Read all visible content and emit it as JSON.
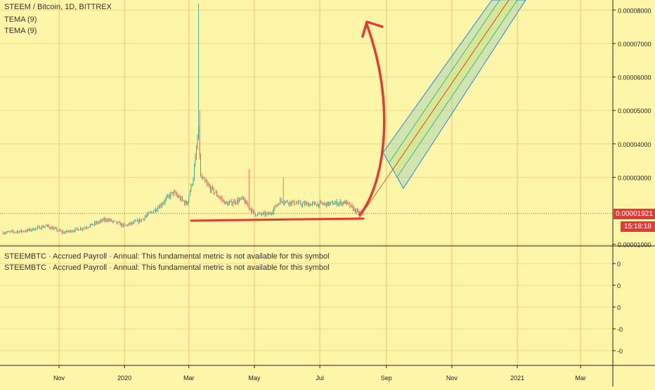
{
  "legend": {
    "symbol_line": "STEEM / Bitcoin, 1D, BITTREX",
    "indicators": [
      "TEMA (9)",
      "TEMA (9)"
    ]
  },
  "metric_panel": {
    "lines": [
      "STEEMBTC · Accrued Payroll · Annual: This fundamental metric is not available for this symbol",
      "STEEMBTC · Accrued Payroll · Annual: This fundamental metric is not available for this symbol"
    ]
  },
  "price_badge": {
    "price": "0.00001921",
    "countdown": "15:18:18"
  },
  "colors": {
    "background": "#fdf5a8",
    "grid": "#f2c36b",
    "candle_up": "#26a69a",
    "candle_down": "#ef5350",
    "annotation": "#e53935",
    "channel_border": "#1e88e5",
    "channel_fill": "#7ec8b4"
  },
  "chart_data": {
    "type": "candlestick",
    "title": "STEEM / Bitcoin, 1D, BITTREX",
    "x_tick_labels": [
      "Nov",
      "2020",
      "Mar",
      "May",
      "Jul",
      "Sep",
      "Nov",
      "2021",
      "Mar"
    ],
    "y_tick_labels": [
      "0.00008000",
      "0.00007000",
      "0.00006000",
      "0.00005000",
      "0.00004000",
      "0.00003000",
      "0.00001000"
    ],
    "y_ticks": [
      8e-05,
      7e-05,
      6e-05,
      5e-05,
      4e-05,
      3e-05,
      1e-05
    ],
    "ylim": [
      9.5e-06,
      8.3e-05
    ],
    "current_price": 1.921e-05,
    "grid": true,
    "x_date_range": [
      "2019-09-07",
      "2021-03-31"
    ],
    "series": [
      {
        "values": [
          [
            "2019-09-10",
            1.35e-05
          ],
          [
            "2019-10-01",
            1.4e-05
          ],
          [
            "2019-10-20",
            1.55e-05
          ],
          [
            "2019-11-05",
            1.35e-05
          ],
          [
            "2019-11-25",
            1.5e-05
          ],
          [
            "2019-12-15",
            1.75e-05
          ],
          [
            "2020-01-01",
            1.55e-05
          ],
          [
            "2020-01-15",
            1.7e-05
          ],
          [
            "2020-02-01",
            2.1e-05
          ],
          [
            "2020-02-15",
            2.55e-05
          ],
          [
            "2020-02-28",
            2.2e-05
          ],
          [
            "2020-03-05",
            3e-05
          ],
          [
            "2020-03-10",
            4.4e-05
          ],
          [
            "2020-03-12",
            3e-05
          ],
          [
            "2020-03-20",
            2.7e-05
          ],
          [
            "2020-04-05",
            2.2e-05
          ],
          [
            "2020-04-20",
            2.35e-05
          ],
          [
            "2020-05-01",
            1.9e-05
          ],
          [
            "2020-05-15",
            1.9e-05
          ],
          [
            "2020-05-25",
            2.3e-05
          ],
          [
            "2020-06-15",
            2.2e-05
          ],
          [
            "2020-07-05",
            2.2e-05
          ],
          [
            "2020-07-25",
            2.25e-05
          ],
          [
            "2020-08-05",
            1.95e-05
          ],
          [
            "2020-08-10",
            1.921e-05
          ]
        ]
      }
    ]
  }
}
